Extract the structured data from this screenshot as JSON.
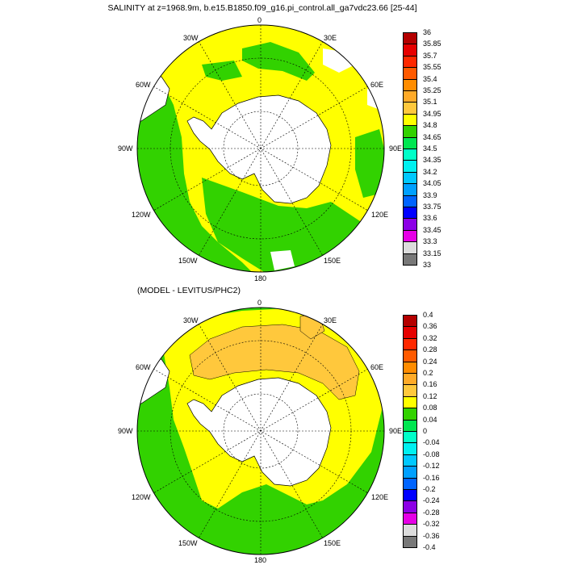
{
  "panels": [
    {
      "title": "SALINITY at z=1968.9m, b.e15.B1850.f09_g16.pi_control.all_ga7vdc23.66 [25-44]",
      "longitude_labels": {
        "top": "0",
        "right": "90E",
        "bottom": "180",
        "left": "90W",
        "nw": "30W",
        "ne": "30E",
        "wn": "60W",
        "en": "60E",
        "ws": "120W",
        "es": "120E",
        "sw": "150W",
        "se": "150E"
      },
      "colorbar": {
        "labels": [
          "36",
          "35.85",
          "35.7",
          "35.55",
          "35.4",
          "35.25",
          "35.1",
          "34.95",
          "34.8",
          "34.65",
          "34.5",
          "34.35",
          "34.2",
          "34.05",
          "33.9",
          "33.75",
          "33.6",
          "33.45",
          "33.3",
          "33.15",
          "33"
        ],
        "colors": [
          "#b40000",
          "#e60000",
          "#ff2800",
          "#ff5a00",
          "#ff8c00",
          "#ffaa28",
          "#ffc83c",
          "#ffff00",
          "#32d200",
          "#00e650",
          "#00ffc8",
          "#00f0f0",
          "#00c8ff",
          "#00a0ff",
          "#0064ff",
          "#0000ff",
          "#8c00e6",
          "#e600e6",
          "#dcdcdc",
          "#787878"
        ]
      },
      "map_colors": {
        "ocean_main": "#ffff00",
        "ocean_secondary": "#32d200",
        "ocean_tertiary": "#ffc83c",
        "land": "#ffffff",
        "grid": "#000000"
      }
    },
    {
      "title": "(MODEL - LEVITUS/PHC2)",
      "longitude_labels": {
        "top": "0",
        "right": "90E",
        "bottom": "180",
        "left": "90W",
        "nw": "30W",
        "ne": "30E",
        "wn": "60W",
        "en": "60E",
        "ws": "120W",
        "es": "120E",
        "sw": "150W",
        "se": "150E"
      },
      "colorbar": {
        "labels": [
          "0.4",
          "0.36",
          "0.32",
          "0.28",
          "0.24",
          "0.2",
          "0.16",
          "0.12",
          "0.08",
          "0.04",
          "0",
          "-0.04",
          "-0.08",
          "-0.12",
          "-0.16",
          "-0.2",
          "-0.24",
          "-0.28",
          "-0.32",
          "-0.36",
          "-0.4"
        ],
        "colors": [
          "#b40000",
          "#e60000",
          "#ff2800",
          "#ff5a00",
          "#ff8c00",
          "#ffaa28",
          "#ffc83c",
          "#ffff00",
          "#32d200",
          "#00e650",
          "#00ffc8",
          "#00f0f0",
          "#00c8ff",
          "#00a0ff",
          "#0064ff",
          "#0000ff",
          "#8c00e6",
          "#e600e6",
          "#dcdcdc",
          "#787878"
        ]
      },
      "map_colors": {
        "ocean_main": "#ffff00",
        "ocean_secondary": "#32d200",
        "ocean_tertiary": "#ffc83c",
        "land": "#ffffff",
        "grid": "#000000"
      }
    }
  ]
}
